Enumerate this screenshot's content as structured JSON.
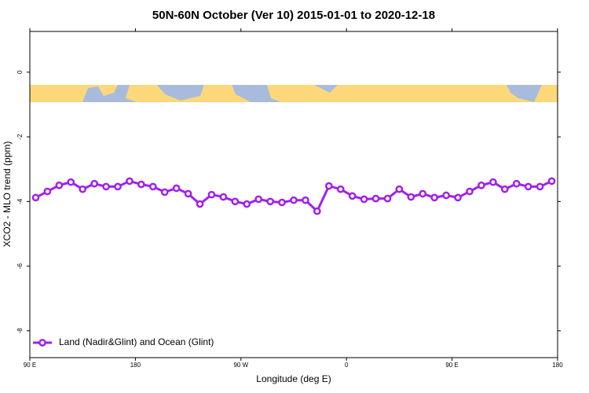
{
  "chart_data": {
    "type": "line",
    "title": "50N-60N October (Ver 10)   2015-01-01 to 2020-12-18",
    "x_label": "Longitude (deg E)",
    "y_label": "XCO2 - MLO trend (ppm)",
    "x": [
      95,
      105,
      115,
      125,
      135,
      145,
      155,
      165,
      175,
      185,
      195,
      205,
      215,
      225,
      235,
      245,
      255,
      265,
      275,
      285,
      295,
      305,
      315,
      325,
      335,
      345,
      355,
      365,
      375,
      385,
      395,
      405,
      415,
      425,
      435,
      445,
      455,
      465,
      475,
      485,
      495,
      505,
      515,
      525,
      535
    ],
    "series": [
      {
        "name": "Land (Nadir&Glint) and Ocean (Glint)",
        "color": "#a020f0",
        "values": [
          -3.88,
          -3.69,
          -3.5,
          -3.4,
          -3.62,
          -3.45,
          -3.54,
          -3.54,
          -3.37,
          -3.47,
          -3.54,
          -3.71,
          -3.59,
          -3.76,
          -4.08,
          -3.79,
          -3.86,
          -4.0,
          -4.08,
          -3.93,
          -4.0,
          -4.03,
          -3.96,
          -3.96,
          -4.3,
          -3.52,
          -3.62,
          -3.83,
          -3.93,
          -3.91,
          -3.91,
          -3.62,
          -3.86,
          -3.76,
          -3.88,
          -3.81,
          -3.88,
          -3.69,
          -3.5,
          -3.4,
          -3.62,
          -3.45,
          -3.54,
          -3.54,
          -3.37
        ]
      }
    ],
    "xlim": [
      90,
      540
    ],
    "xticks": [
      {
        "value": 90,
        "label": "90 E"
      },
      180,
      {
        "value": 270,
        "label": "90 W"
      },
      {
        "value": 360,
        "label": "0"
      },
      {
        "value": 450,
        "label": "90 E"
      },
      {
        "value": 540,
        "label": "180"
      }
    ],
    "ylim": [
      -8.83,
      1.26
    ],
    "yticks": [
      0,
      -2,
      -4,
      -6,
      -8
    ],
    "legend": "bottom-left"
  }
}
